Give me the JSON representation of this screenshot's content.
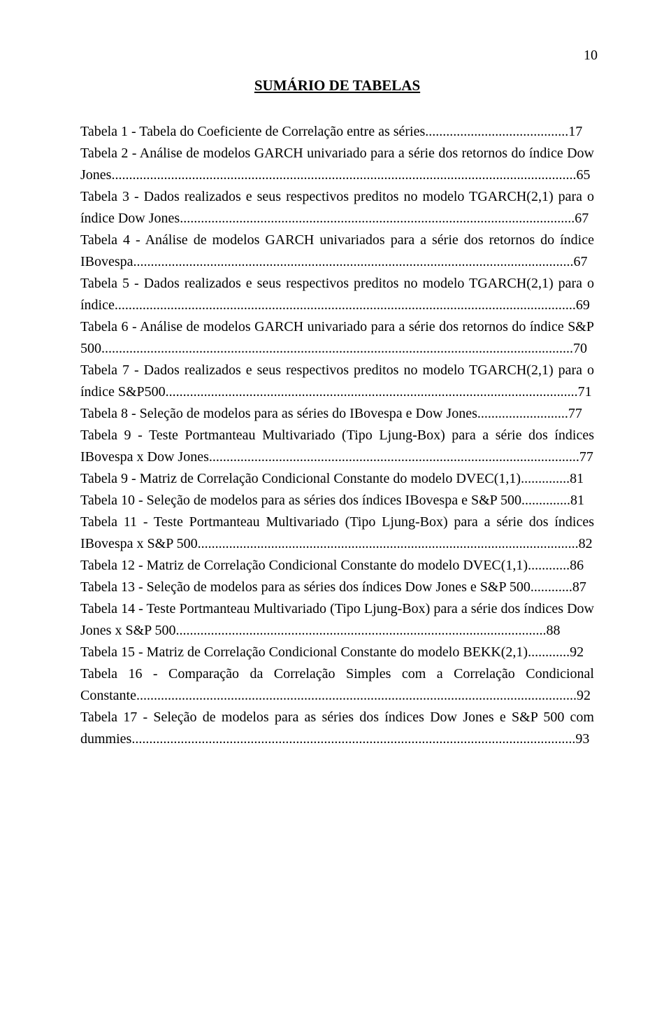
{
  "page_number": "10",
  "title": "SUMÁRIO DE TABELAS",
  "entries": [
    {
      "text": "Tabela 1 - Tabela do Coeficiente de Correlação entre as séries.........................................17"
    },
    {
      "text": "Tabela 2 - Análise de modelos GARCH univariado para a série dos retornos do índice Dow Jones.....................................................................................................................................65"
    },
    {
      "text": "Tabela 3 - Dados realizados e seus respectivos preditos no modelo TGARCH(2,1) para o índice Dow Jones.................................................................................................................67"
    },
    {
      "text": "Tabela 4 - Análise de modelos GARCH univariados para a série dos retornos do índice IBovespa..............................................................................................................................67"
    },
    {
      "text": "Tabela 5 - Dados realizados e seus respectivos preditos no modelo TGARCH(2,1) para o índice....................................................................................................................................69"
    },
    {
      "text": "Tabela 6 - Análise de modelos GARCH univariado para a série dos retornos do índice S&P 500.......................................................................................................................................70"
    },
    {
      "text": "Tabela 7 - Dados realizados e seus respectivos preditos no modelo TGARCH(2,1) para o índice S&P500......................................................................................................................71"
    },
    {
      "text": "Tabela 8 - Seleção de modelos para as séries do IBovespa e Dow Jones..........................77"
    },
    {
      "text": "Tabela 9 - Teste Portmanteau Multivariado (Tipo Ljung-Box) para a série dos índices IBovespa x Dow Jones..........................................................................................................77"
    },
    {
      "text": "Tabela 9 - Matriz de Correlação Condicional Constante do modelo DVEC(1,1)..............81"
    },
    {
      "text": "Tabela 10 - Seleção de modelos para as séries dos índices IBovespa e S&P 500..............81"
    },
    {
      "text": "Tabela 11 - Teste Portmanteau Multivariado (Tipo Ljung-Box) para a série dos índices IBovespa x S&P 500.............................................................................................................82"
    },
    {
      "text": "Tabela 12 - Matriz de Correlação Condicional Constante do modelo DVEC(1,1)............86"
    },
    {
      "text": "Tabela 13 - Seleção de modelos para as séries dos índices Dow Jones e S&P 500............87"
    },
    {
      "text": "Tabela 14 - Teste Portmanteau Multivariado (Tipo Ljung-Box) para a série dos índices Dow Jones x S&P 500..........................................................................................................88"
    },
    {
      "text": "Tabela 15 - Matriz de Correlação Condicional Constante do modelo BEKK(2,1)............92"
    },
    {
      "text": "Tabela 16 - Comparação da Correlação Simples com a Correlação Condicional Constante..............................................................................................................................92"
    },
    {
      "text": "Tabela 17 - Seleção de modelos para as séries dos índices Dow Jones e S&P 500 com dummies...............................................................................................................................93"
    }
  ]
}
